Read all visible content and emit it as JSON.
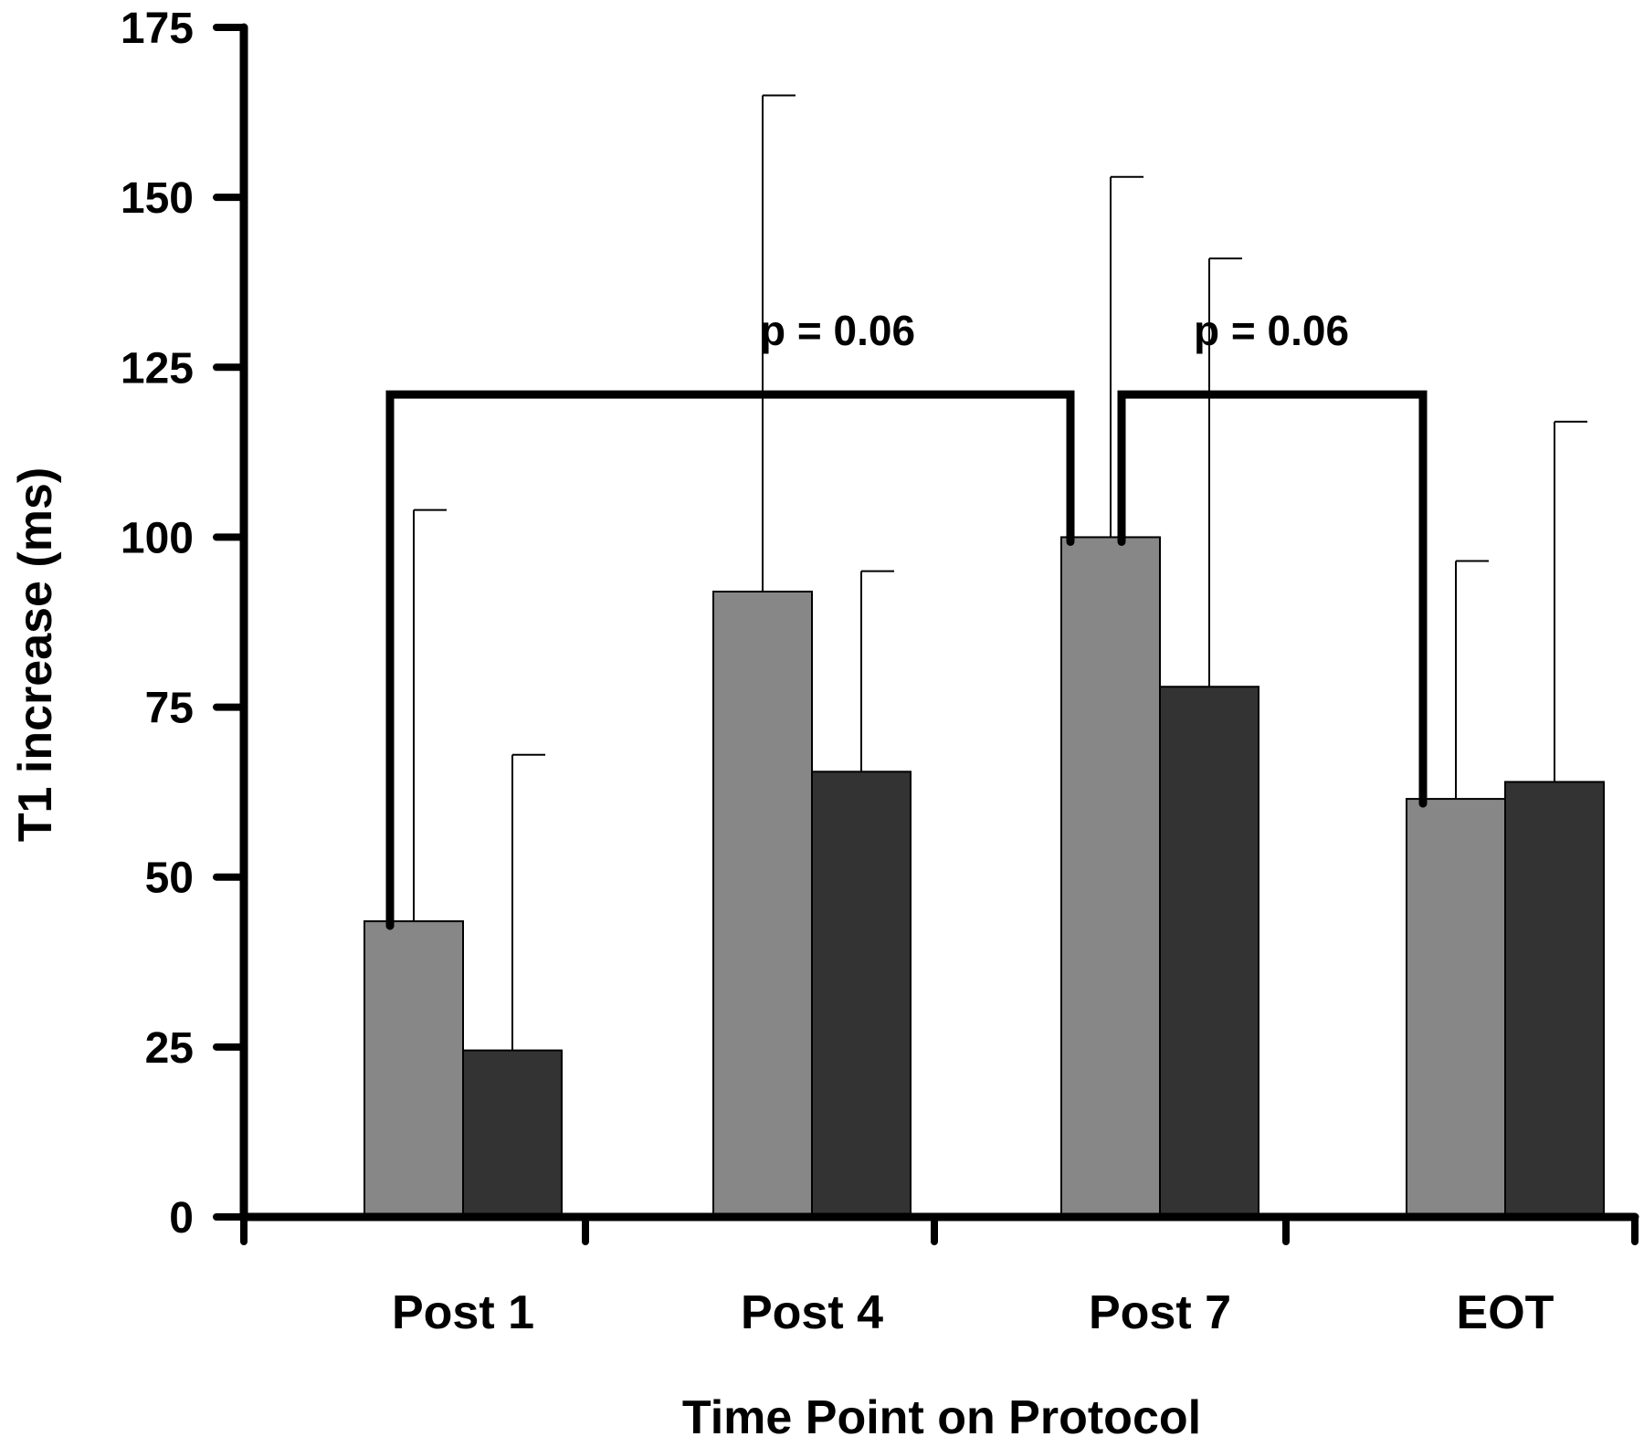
{
  "chart_data": {
    "type": "bar",
    "title": "",
    "xlabel": "Time Point on Protocol",
    "ylabel": "T1 increase (ms)",
    "ylim": [
      0,
      175
    ],
    "yticks": [
      0,
      25,
      50,
      75,
      100,
      125,
      150,
      175
    ],
    "categories": [
      "Post 1",
      "Post 4",
      "Post 7",
      "EOT"
    ],
    "series": [
      {
        "color": "#878787",
        "values": [
          43.5,
          92,
          100,
          61.5
        ],
        "error_upper": [
          104,
          165,
          153,
          96.5
        ]
      },
      {
        "color": "#333333",
        "values": [
          24.5,
          65.5,
          78,
          64
        ],
        "error_upper": [
          68,
          95,
          141,
          117
        ]
      }
    ],
    "grid": false,
    "legend": "none",
    "annotations": [
      {
        "text": "p = 0.06",
        "from": {
          "category": 0,
          "series": 0
        },
        "to": {
          "category": 2,
          "series": 0
        },
        "bracket_level": 121
      },
      {
        "text": "p = 0.06",
        "from": {
          "category": 2,
          "series": 0
        },
        "to": {
          "category": 3,
          "series": 0
        },
        "bracket_level": 121
      }
    ]
  }
}
